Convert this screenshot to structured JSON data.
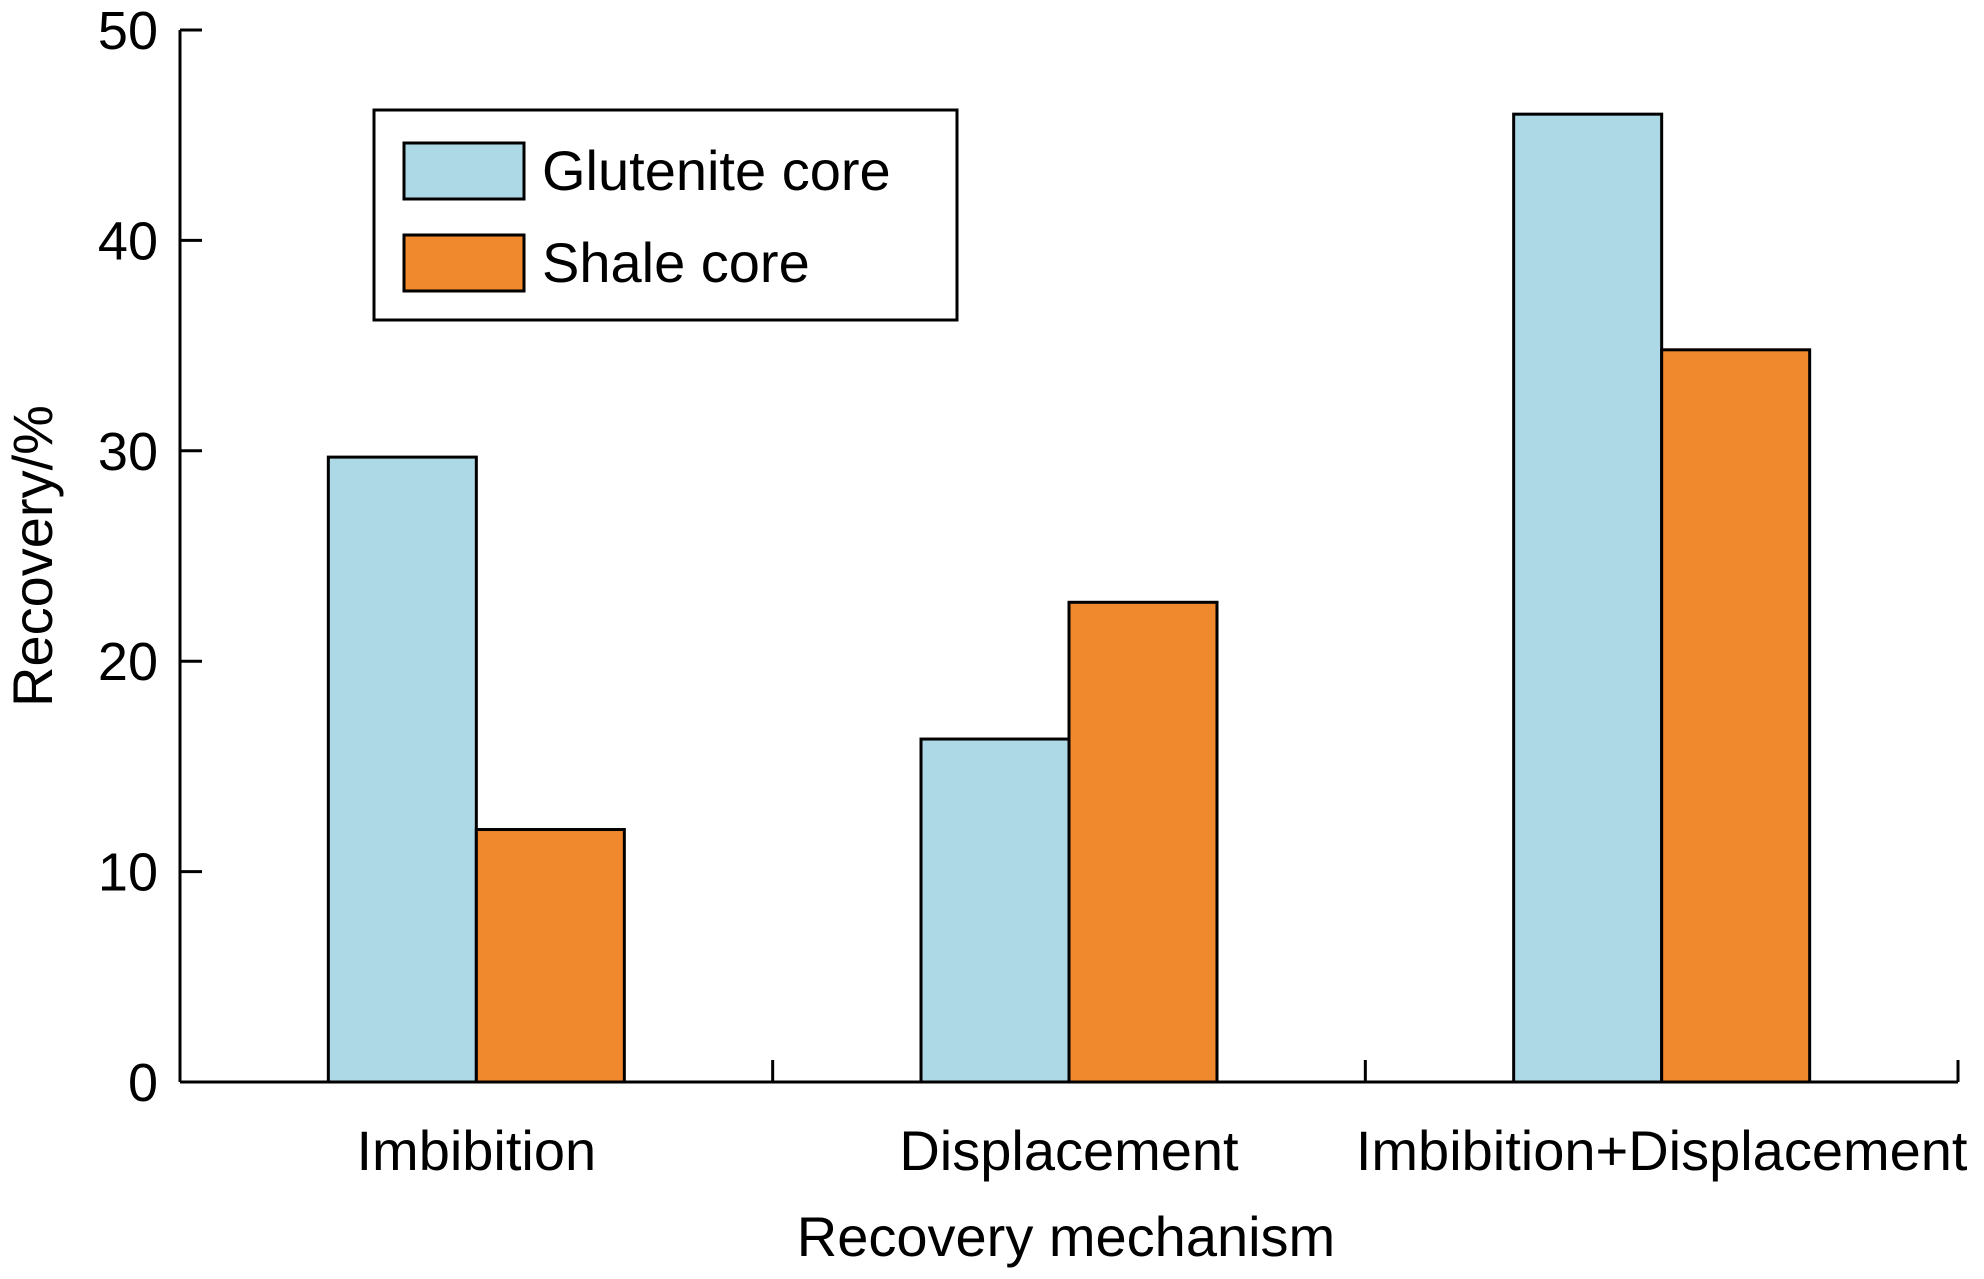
{
  "chart_data": {
    "type": "bar",
    "categories": [
      "Imbibition",
      "Displacement",
      "Imbibition+Displacement"
    ],
    "series": [
      {
        "name": "Glutenite core",
        "values": [
          29.7,
          16.3,
          46.0
        ],
        "color": "#add8e6"
      },
      {
        "name": "Shale core",
        "values": [
          12.0,
          22.8,
          34.8
        ],
        "color": "#f0882e"
      }
    ],
    "xlabel": "Recovery mechanism",
    "ylabel": "Recovery/%",
    "ylim": [
      0,
      50
    ],
    "yticks": [
      0,
      10,
      20,
      30,
      40,
      50
    ],
    "grid": false,
    "legend": "top-left"
  }
}
